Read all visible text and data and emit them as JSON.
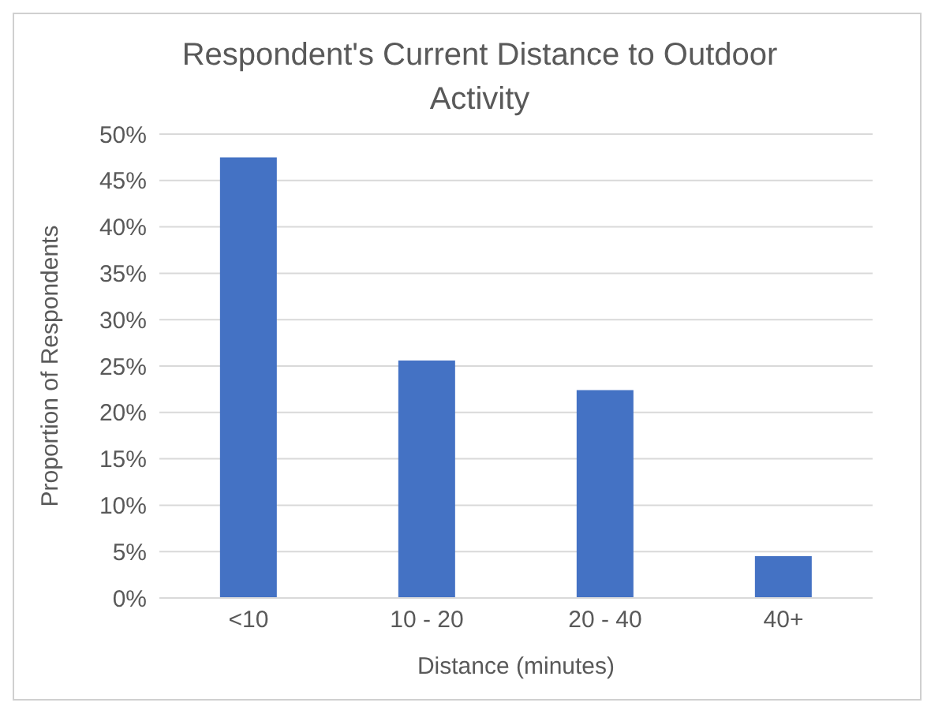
{
  "chart_data": {
    "type": "bar",
    "title": "Respondent's Current Distance to Outdoor Activity",
    "xlabel": "Distance (minutes)",
    "ylabel": "Proportion of Respondents",
    "categories": [
      "<10",
      "10 - 20",
      "20 - 40",
      "40+"
    ],
    "values": [
      47.5,
      25.6,
      22.4,
      4.5
    ],
    "color": "#4472c4",
    "ylim": [
      0,
      50
    ],
    "yticks": [
      {
        "value": 0,
        "label": "0%"
      },
      {
        "value": 5,
        "label": "5%"
      },
      {
        "value": 10,
        "label": "10%"
      },
      {
        "value": 15,
        "label": "15%"
      },
      {
        "value": 20,
        "label": "20%"
      },
      {
        "value": 25,
        "label": "25%"
      },
      {
        "value": 30,
        "label": "30%"
      },
      {
        "value": 35,
        "label": "35%"
      },
      {
        "value": 40,
        "label": "40%"
      },
      {
        "value": 45,
        "label": "45%"
      },
      {
        "value": 50,
        "label": "50%"
      }
    ],
    "grid": "y"
  }
}
